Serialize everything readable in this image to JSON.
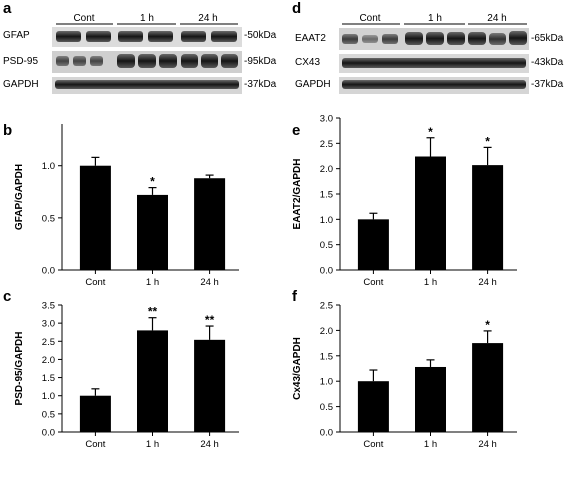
{
  "panel_letters": [
    "a",
    "b",
    "c",
    "d",
    "e",
    "f"
  ],
  "blots": [
    {
      "groups": [
        "Cont",
        "1 h",
        "24 h"
      ],
      "rows": [
        {
          "protein": "GFAP",
          "marker": "-50kDa"
        },
        {
          "protein": "PSD-95",
          "marker": "-95kDa"
        },
        {
          "protein": "GAPDH",
          "marker": "-37kDa"
        }
      ]
    },
    {
      "groups": [
        "Cont",
        "1 h",
        "24 h"
      ],
      "rows": [
        {
          "protein": "EAAT2",
          "marker": "-65kDa"
        },
        {
          "protein": "CX43",
          "marker": "-43kDa"
        },
        {
          "protein": "GAPDH",
          "marker": "-37kDa"
        }
      ]
    }
  ],
  "chart_data": [
    {
      "panel": "b",
      "type": "bar",
      "categories": [
        "Cont",
        "1 h",
        "24 h"
      ],
      "values": [
        1.0,
        0.72,
        0.88
      ],
      "errors": [
        0.08,
        0.07,
        0.03
      ],
      "significance": [
        "",
        "*",
        ""
      ],
      "ylabel": "GFAP/GAPDH",
      "xlabel": "",
      "ylim": [
        0,
        1.4
      ],
      "yticks": [
        "0.0",
        "0.5",
        "1.0"
      ],
      "grid": false
    },
    {
      "panel": "c",
      "type": "bar",
      "categories": [
        "Cont",
        "1 h",
        "24 h"
      ],
      "values": [
        1.0,
        2.8,
        2.54
      ],
      "errors": [
        0.19,
        0.35,
        0.38
      ],
      "significance": [
        "",
        "**",
        "**"
      ],
      "ylabel": "PSD-95/GAPDH",
      "xlabel": "",
      "ylim": [
        0,
        3.5
      ],
      "yticks": [
        "0.0",
        "0.5",
        "1.0",
        "1.5",
        "2.0",
        "2.5",
        "3.0",
        "3.5"
      ],
      "grid": false
    },
    {
      "panel": "e",
      "type": "bar",
      "categories": [
        "Cont",
        "1 h",
        "24 h"
      ],
      "values": [
        1.0,
        2.24,
        2.07
      ],
      "errors": [
        0.12,
        0.37,
        0.35
      ],
      "significance": [
        "",
        "*",
        "*"
      ],
      "ylabel": "EAAT2/GAPDH",
      "xlabel": "",
      "ylim": [
        0,
        3.0
      ],
      "yticks": [
        "0.0",
        "0.5",
        "1.0",
        "1.5",
        "2.0",
        "2.5",
        "3.0"
      ],
      "grid": false
    },
    {
      "panel": "f",
      "type": "bar",
      "categories": [
        "Cont",
        "1 h",
        "24 h"
      ],
      "values": [
        1.0,
        1.28,
        1.75
      ],
      "errors": [
        0.22,
        0.14,
        0.24
      ],
      "significance": [
        "",
        "",
        "*"
      ],
      "ylabel": "Cx43/GAPDH",
      "xlabel": "",
      "ylim": [
        0,
        2.5
      ],
      "yticks": [
        "0.0",
        "0.5",
        "1.0",
        "1.5",
        "2.0",
        "2.5"
      ],
      "grid": false
    }
  ]
}
